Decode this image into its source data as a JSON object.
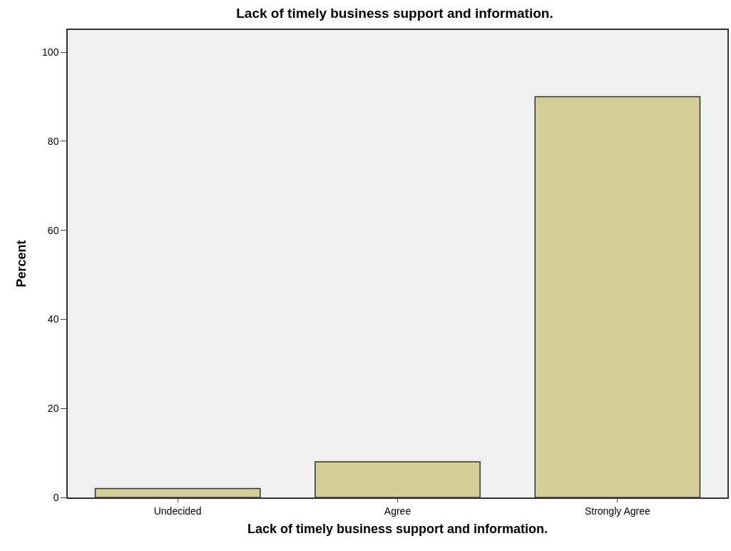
{
  "chart_data": {
    "type": "bar",
    "title": "Lack of timely business support and information.",
    "xlabel": "Lack of timely business support and information.",
    "ylabel": "Percent",
    "categories": [
      "Undecided",
      "Agree",
      "Strongly Agree"
    ],
    "values": [
      2,
      8,
      90
    ],
    "color": "#d3ce97",
    "ylim": [
      0,
      105
    ],
    "yticks": [
      0,
      20,
      40,
      60,
      80,
      100
    ],
    "grid": false
  }
}
